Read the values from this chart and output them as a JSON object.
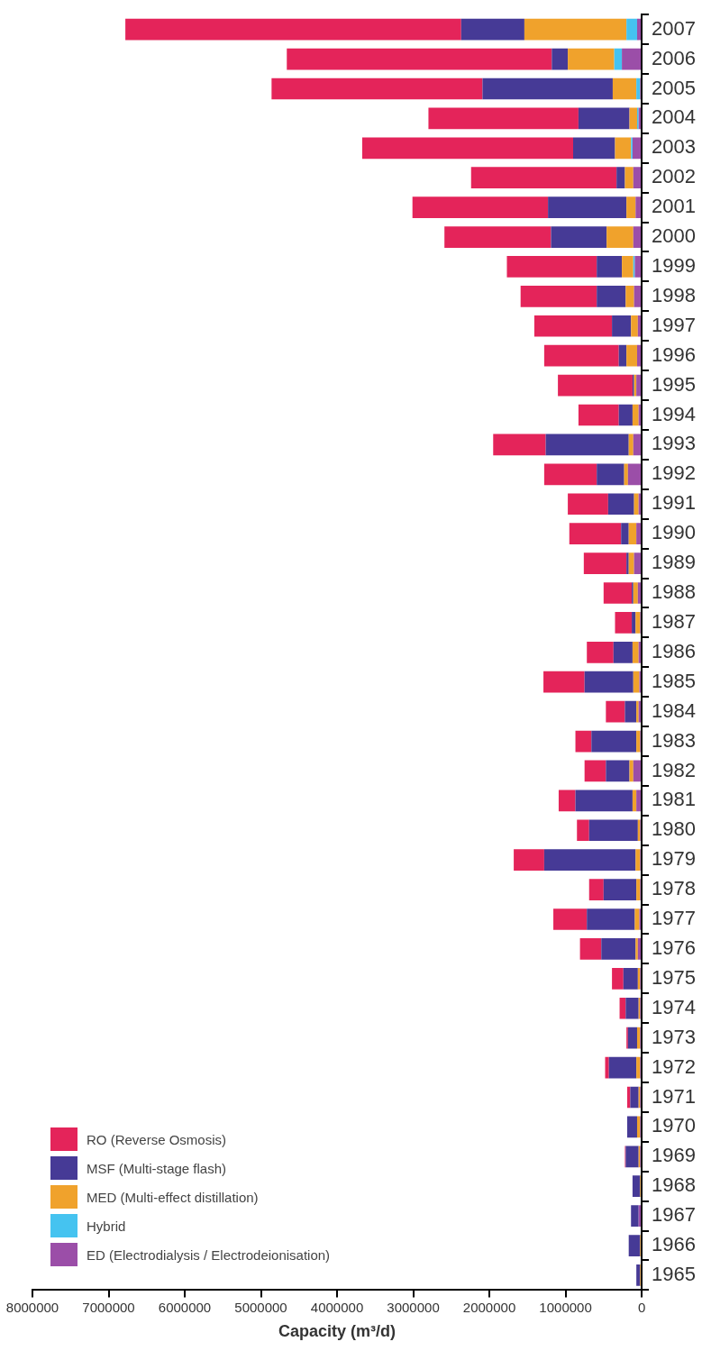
{
  "chart_data": {
    "type": "bar",
    "orientation": "horizontal",
    "stacked": true,
    "xlabel": "Capacity (m³/d)",
    "categories": [
      "2007",
      "2006",
      "2005",
      "2004",
      "2003",
      "2002",
      "2001",
      "2000",
      "1999",
      "1998",
      "1997",
      "1996",
      "1995",
      "1994",
      "1993",
      "1992",
      "1991",
      "1990",
      "1989",
      "1988",
      "1987",
      "1986",
      "1985",
      "1984",
      "1983",
      "1982",
      "1981",
      "1980",
      "1979",
      "1978",
      "1977",
      "1976",
      "1975",
      "1974",
      "1973",
      "1972",
      "1971",
      "1970",
      "1969",
      "1968",
      "1967",
      "1966",
      "1965"
    ],
    "xlim": [
      8000000,
      0
    ],
    "xticks": [
      0,
      1000000,
      2000000,
      3000000,
      4000000,
      5000000,
      6000000,
      7000000,
      8000000
    ],
    "grid": false,
    "legend": "bottom left",
    "series": [
      {
        "name": "ED (Electrodialysis / Electrodeionisation)",
        "color": "#9b4ea8",
        "values": [
          60000,
          260000,
          20000,
          40000,
          120000,
          110000,
          80000,
          110000,
          90000,
          100000,
          50000,
          60000,
          70000,
          40000,
          110000,
          180000,
          40000,
          70000,
          100000,
          50000,
          20000,
          40000,
          30000,
          40000,
          20000,
          110000,
          70000,
          20000,
          20000,
          20000,
          30000,
          50000,
          20000,
          20000,
          20000,
          20000,
          20000,
          20000,
          20000,
          0,
          40000,
          0,
          0
        ]
      },
      {
        "name": "Hybrid",
        "color": "#45c3f0",
        "values": [
          140000,
          100000,
          50000,
          20000,
          20000,
          0,
          0,
          0,
          20000,
          0,
          0,
          0,
          0,
          0,
          0,
          0,
          0,
          0,
          0,
          0,
          0,
          0,
          0,
          0,
          0,
          0,
          0,
          0,
          0,
          0,
          0,
          0,
          0,
          0,
          0,
          0,
          0,
          0,
          0,
          0,
          0,
          0,
          0
        ]
      },
      {
        "name": "MED (Multi-effect distillation)",
        "color": "#f0a22c",
        "values": [
          1340000,
          610000,
          310000,
          100000,
          210000,
          110000,
          120000,
          350000,
          150000,
          110000,
          90000,
          140000,
          30000,
          80000,
          60000,
          50000,
          60000,
          100000,
          70000,
          60000,
          60000,
          80000,
          80000,
          30000,
          50000,
          50000,
          50000,
          30000,
          60000,
          50000,
          60000,
          30000,
          30000,
          20000,
          40000,
          50000,
          20000,
          40000,
          20000,
          20000,
          0,
          20000,
          20000
        ]
      },
      {
        "name": "MSF (Multi-stage flash)",
        "color": "#463a96",
        "values": [
          830000,
          210000,
          1710000,
          670000,
          550000,
          110000,
          1030000,
          730000,
          330000,
          380000,
          250000,
          100000,
          20000,
          180000,
          1090000,
          360000,
          340000,
          100000,
          30000,
          20000,
          50000,
          250000,
          640000,
          150000,
          590000,
          310000,
          750000,
          640000,
          1200000,
          430000,
          630000,
          450000,
          190000,
          170000,
          120000,
          360000,
          110000,
          130000,
          170000,
          100000,
          100000,
          150000,
          50000
        ]
      },
      {
        "name": "RO (Reverse Osmosis)",
        "color": "#e4245a",
        "values": [
          4410000,
          3480000,
          2770000,
          1970000,
          2770000,
          1910000,
          1780000,
          1400000,
          1180000,
          1000000,
          1020000,
          980000,
          980000,
          530000,
          690000,
          690000,
          530000,
          680000,
          560000,
          370000,
          220000,
          350000,
          540000,
          250000,
          210000,
          280000,
          220000,
          160000,
          400000,
          190000,
          440000,
          280000,
          150000,
          80000,
          20000,
          50000,
          40000,
          0,
          10000,
          0,
          0,
          0,
          0
        ]
      }
    ]
  }
}
